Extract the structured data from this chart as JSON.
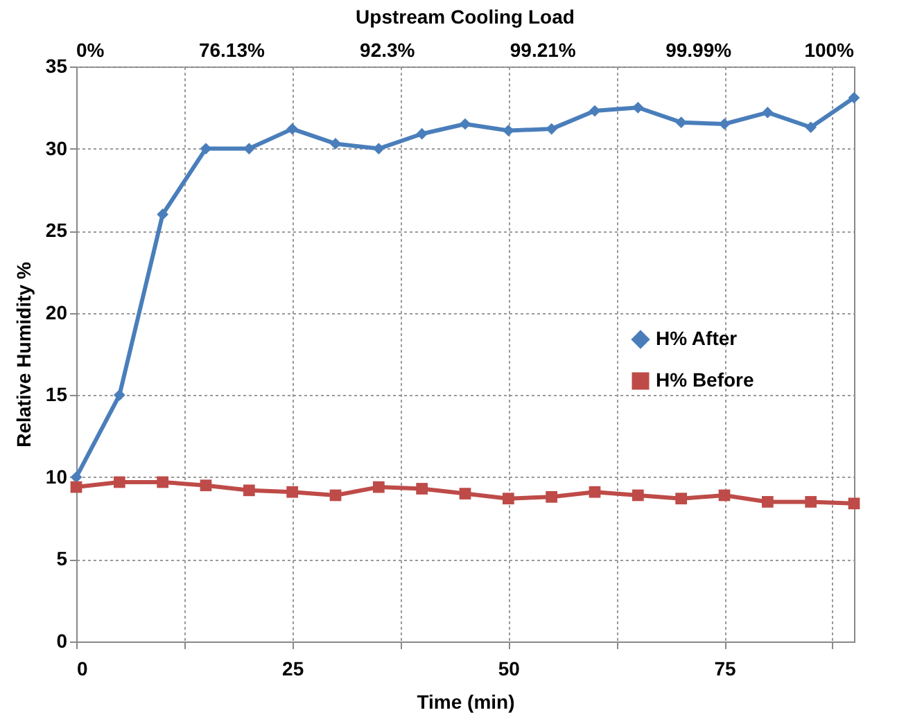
{
  "chart_data": {
    "type": "line",
    "xlabel": "Time (min)",
    "ylabel": "Relative Humidity %",
    "x2label": "Upstream Cooling Load",
    "x": [
      0,
      5,
      10,
      15,
      20,
      25,
      30,
      35,
      40,
      45,
      50,
      55,
      60,
      65,
      70,
      75,
      80,
      85,
      90
    ],
    "series": [
      {
        "name": "H% After",
        "color": "#4a7ebb",
        "marker": "diamond",
        "values": [
          10,
          15,
          26,
          30,
          30,
          31.2,
          30.3,
          30,
          30.9,
          31.5,
          31.1,
          31.2,
          32.3,
          32.5,
          31.6,
          31.5,
          32.2,
          31.3,
          33.1
        ]
      },
      {
        "name": "H% Before",
        "color": "#be4b48",
        "marker": "square",
        "values": [
          9.4,
          9.7,
          9.7,
          9.5,
          9.2,
          9.1,
          8.9,
          9.4,
          9.3,
          9.0,
          8.7,
          8.8,
          9.1,
          8.9,
          8.7,
          8.9,
          8.5,
          8.5,
          8.4
        ]
      }
    ],
    "xlim": [
      0,
      90
    ],
    "xticks": [
      0,
      {
        "value": 12.5,
        "label": null
      },
      25,
      {
        "value": 37.5,
        "label": null
      },
      50,
      {
        "value": 62.5,
        "label": null
      },
      75,
      {
        "value": 87.5,
        "label": null
      }
    ],
    "annotations": [
      "0%",
      "76.13%",
      "92.3%",
      "99.21%",
      "99.99%",
      "100%"
    ],
    "ylim": [
      0,
      35
    ],
    "yticks": [
      0,
      5,
      10,
      15,
      20,
      25,
      30,
      35
    ],
    "grid": true,
    "legend": "right",
    "line_style": "solid"
  }
}
